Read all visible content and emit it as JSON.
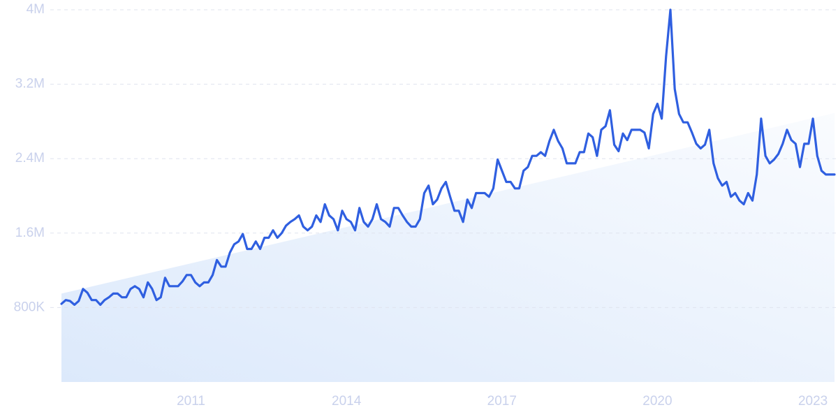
{
  "chart_data": {
    "type": "line",
    "categories": [
      null,
      null,
      null,
      null,
      null,
      null,
      null,
      null,
      null,
      null,
      null,
      null,
      null,
      null,
      null,
      null,
      null,
      null,
      null,
      null,
      null,
      null,
      null,
      null,
      null,
      null,
      null,
      null,
      null,
      null,
      "2011",
      null,
      null,
      null,
      null,
      null,
      null,
      null,
      null,
      null,
      null,
      null,
      null,
      null,
      null,
      null,
      null,
      null,
      null,
      null,
      null,
      null,
      null,
      null,
      null,
      null,
      null,
      null,
      null,
      null,
      null,
      null,
      null,
      null,
      null,
      null,
      "2014",
      null,
      null,
      null,
      null,
      null,
      null,
      null,
      null,
      null,
      null,
      null,
      null,
      null,
      null,
      null,
      null,
      null,
      null,
      null,
      null,
      null,
      null,
      null,
      null,
      null,
      null,
      null,
      null,
      null,
      null,
      null,
      null,
      null,
      null,
      null,
      "2017",
      null,
      null,
      null,
      null,
      null,
      null,
      null,
      null,
      null,
      null,
      null,
      null,
      null,
      null,
      null,
      null,
      null,
      null,
      null,
      null,
      null,
      null,
      null,
      null,
      null,
      null,
      null,
      null,
      null,
      null,
      null,
      null,
      null,
      null,
      null,
      "2020",
      null,
      null,
      null,
      null,
      null,
      null,
      null,
      null,
      null,
      null,
      null,
      null,
      null,
      null,
      null,
      null,
      null,
      null,
      null,
      null,
      null,
      null,
      null,
      null,
      null,
      null,
      null,
      null,
      null,
      null,
      null,
      null,
      null,
      null,
      null,
      "2023",
      null,
      null,
      null,
      null,
      null
    ],
    "values": [
      840000,
      880000,
      870000,
      830000,
      870000,
      1000000,
      960000,
      880000,
      880000,
      830000,
      880000,
      910000,
      950000,
      950000,
      910000,
      910000,
      1000000,
      1030000,
      1000000,
      910000,
      1070000,
      1000000,
      880000,
      910000,
      1120000,
      1030000,
      1030000,
      1030000,
      1080000,
      1150000,
      1150000,
      1070000,
      1030000,
      1070000,
      1070000,
      1150000,
      1310000,
      1240000,
      1240000,
      1390000,
      1480000,
      1510000,
      1590000,
      1430000,
      1430000,
      1510000,
      1430000,
      1550000,
      1550000,
      1630000,
      1550000,
      1600000,
      1680000,
      1720000,
      1750000,
      1790000,
      1670000,
      1630000,
      1670000,
      1790000,
      1720000,
      1910000,
      1790000,
      1750000,
      1630000,
      1840000,
      1750000,
      1720000,
      1630000,
      1870000,
      1720000,
      1670000,
      1750000,
      1910000,
      1750000,
      1720000,
      1670000,
      1870000,
      1870000,
      1790000,
      1720000,
      1670000,
      1670000,
      1750000,
      2030000,
      2110000,
      1910000,
      1960000,
      2080000,
      2150000,
      1990000,
      1840000,
      1840000,
      1720000,
      1960000,
      1870000,
      2030000,
      2030000,
      2030000,
      1990000,
      2080000,
      2390000,
      2270000,
      2150000,
      2150000,
      2080000,
      2080000,
      2270000,
      2310000,
      2430000,
      2430000,
      2470000,
      2430000,
      2590000,
      2710000,
      2590000,
      2510000,
      2350000,
      2350000,
      2350000,
      2470000,
      2470000,
      2670000,
      2630000,
      2430000,
      2710000,
      2750000,
      2920000,
      2550000,
      2480000,
      2670000,
      2600000,
      2710000,
      2710000,
      2710000,
      2680000,
      2510000,
      2880000,
      2990000,
      2830000,
      3500000,
      4000000,
      3150000,
      2880000,
      2790000,
      2790000,
      2680000,
      2560000,
      2510000,
      2550000,
      2710000,
      2350000,
      2190000,
      2110000,
      2150000,
      1990000,
      2030000,
      1950000,
      1910000,
      2030000,
      1950000,
      2230000,
      2830000,
      2430000,
      2350000,
      2390000,
      2450000,
      2560000,
      2710000,
      2600000,
      2560000,
      2310000,
      2560000,
      2560000,
      2830000,
      2430000,
      2270000,
      2230000,
      2230000,
      2230000
    ],
    "color": "#2f5fe0",
    "trend": {
      "values": [
        950000,
        2890000
      ],
      "color": "#dce9fb"
    },
    "ylim": [
      0,
      4000000
    ],
    "yticks": [
      {
        "value": 800000,
        "label": "800K"
      },
      {
        "value": 1600000,
        "label": "1.6M"
      },
      {
        "value": 2400000,
        "label": "2.4M"
      },
      {
        "value": 3200000,
        "label": "3.2M"
      },
      {
        "value": 4000000,
        "label": "4M"
      }
    ],
    "grid": true
  }
}
